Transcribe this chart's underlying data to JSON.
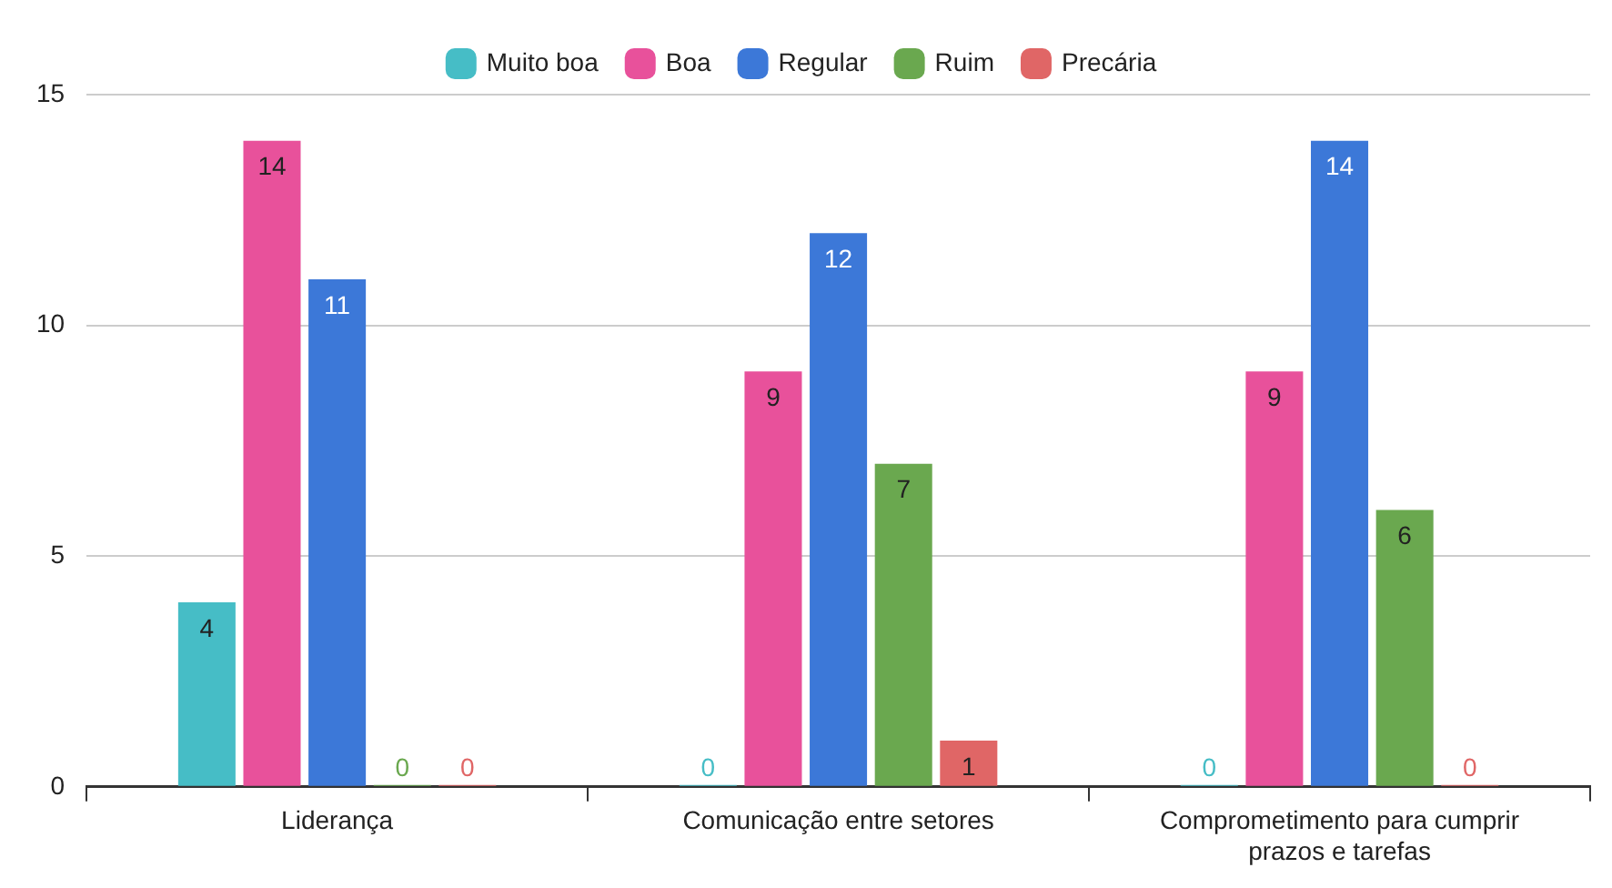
{
  "chart_data": {
    "type": "bar",
    "categories": [
      "Liderança",
      "Comunicação entre setores",
      "Comprometimento para cumprir prazos e tarefas"
    ],
    "series": [
      {
        "name": "Muito boa",
        "color": "#46bdc6",
        "values": [
          4,
          0,
          0
        ]
      },
      {
        "name": "Boa",
        "color": "#e8519b",
        "values": [
          14,
          9,
          9
        ]
      },
      {
        "name": "Regular",
        "color": "#3c78d8",
        "values": [
          11,
          12,
          14
        ]
      },
      {
        "name": "Ruim",
        "color": "#6aa84f",
        "values": [
          0,
          7,
          6
        ]
      },
      {
        "name": "Precária",
        "color": "#e06666",
        "values": [
          0,
          1,
          0
        ]
      }
    ],
    "ylim": [
      0,
      15
    ],
    "yticks": [
      0,
      5,
      10,
      15
    ],
    "grid": "y",
    "legend": "top",
    "data_labels": true
  }
}
